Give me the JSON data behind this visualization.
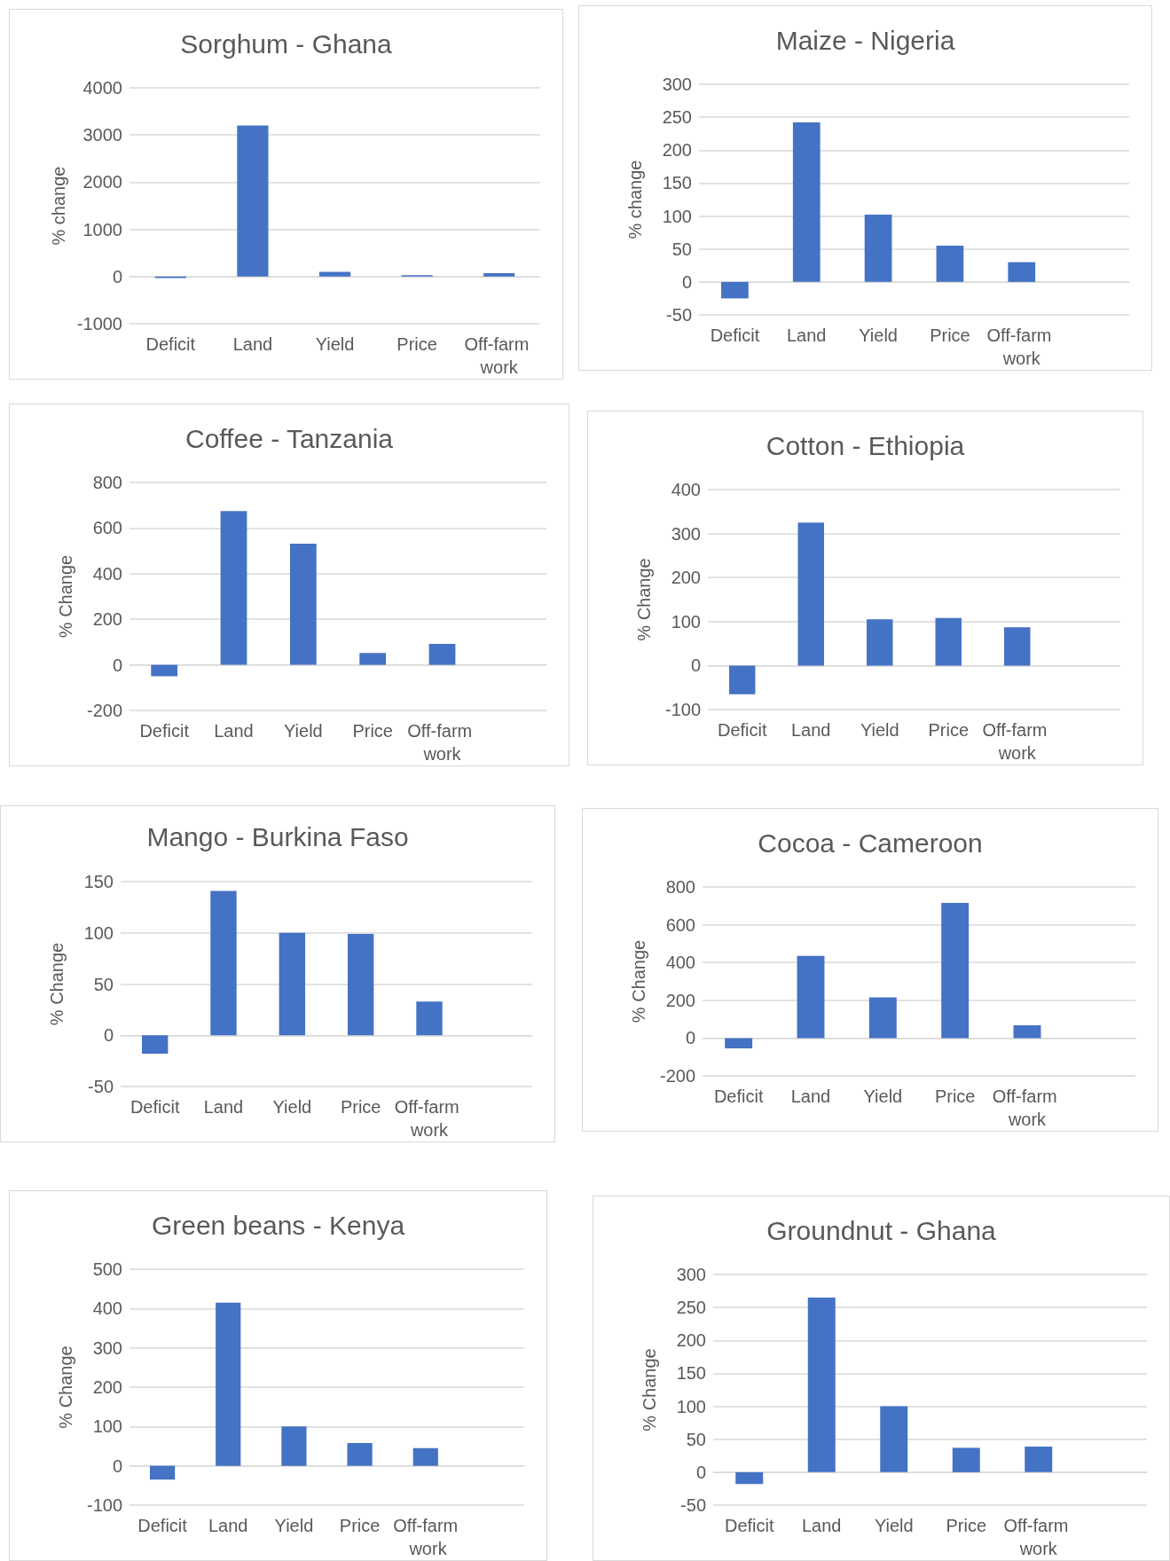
{
  "chart_data": [
    {
      "type": "bar",
      "title": "Sorghum - Ghana",
      "ylabel": "% change",
      "categories": [
        "Deficit",
        "Land",
        "Yield",
        "Price",
        "Off-farm work"
      ],
      "values": [
        -30,
        3200,
        100,
        30,
        70
      ],
      "color": "#4472c4",
      "ylim": [
        -1000,
        4000
      ],
      "yticks": [
        -1000,
        0,
        1000,
        2000,
        3000,
        4000
      ],
      "grid": "y"
    },
    {
      "type": "bar",
      "title": "Maize - Nigeria",
      "ylabel": "% change",
      "categories": [
        "Deficit",
        "Land",
        "Yield",
        "Price",
        "Off-farm work",
        null
      ],
      "values": [
        -25,
        242,
        102,
        55,
        30,
        null
      ],
      "color": "#4472c4",
      "ylim": [
        -50,
        300
      ],
      "yticks": [
        -50,
        0,
        50,
        100,
        150,
        200,
        250,
        300
      ],
      "grid": "y"
    },
    {
      "type": "bar",
      "title": "Coffee - Tanzania",
      "ylabel": "% Change",
      "categories": [
        "Deficit",
        "Land",
        "Yield",
        "Price",
        "Off-farm work",
        null
      ],
      "values": [
        -50,
        675,
        532,
        52,
        92,
        null
      ],
      "color": "#4472c4",
      "ylim": [
        -200,
        800
      ],
      "yticks": [
        -200,
        0,
        200,
        400,
        600,
        800
      ],
      "grid": "y"
    },
    {
      "type": "bar",
      "title": "Cotton - Ethiopia",
      "ylabel": "% Change",
      "categories": [
        "Deficit",
        "Land",
        "Yield",
        "Price",
        "Off-farm work",
        null
      ],
      "values": [
        -65,
        325,
        105,
        108,
        87,
        null
      ],
      "color": "#4472c4",
      "ylim": [
        -100,
        400
      ],
      "yticks": [
        -100,
        0,
        100,
        200,
        300,
        400
      ],
      "grid": "y"
    },
    {
      "type": "bar",
      "title": "Mango - Burkina Faso",
      "ylabel": "% Change",
      "categories": [
        "Deficit",
        "Land",
        "Yield",
        "Price",
        "Off-farm work",
        null
      ],
      "values": [
        -18,
        141,
        100,
        99,
        33,
        null
      ],
      "color": "#4472c4",
      "ylim": [
        -50,
        150
      ],
      "yticks": [
        -50,
        0,
        50,
        100,
        150
      ],
      "grid": "y"
    },
    {
      "type": "bar",
      "title": "Cocoa - Cameroon",
      "ylabel": "% Change",
      "categories": [
        "Deficit",
        "Land",
        "Yield",
        "Price",
        "Off-farm work",
        null
      ],
      "values": [
        -55,
        435,
        215,
        715,
        68,
        null
      ],
      "color": "#4472c4",
      "ylim": [
        -200,
        800
      ],
      "yticks": [
        -200,
        0,
        200,
        400,
        600,
        800
      ],
      "grid": "y"
    },
    {
      "type": "bar",
      "title": "Green beans - Kenya",
      "ylabel": "% Change",
      "categories": [
        "Deficit",
        "Land",
        "Yield",
        "Price",
        "Off-farm work",
        null
      ],
      "values": [
        -35,
        415,
        100,
        58,
        45,
        null
      ],
      "color": "#4472c4",
      "ylim": [
        -100,
        500
      ],
      "yticks": [
        -100,
        0,
        100,
        200,
        300,
        400,
        500
      ],
      "grid": "y"
    },
    {
      "type": "bar",
      "title": "Groundnut - Ghana",
      "ylabel": "% Change",
      "categories": [
        "Deficit",
        "Land",
        "Yield",
        "Price",
        "Off-farm work",
        null
      ],
      "values": [
        -18,
        265,
        100,
        37,
        39,
        null
      ],
      "color": "#4472c4",
      "ylim": [
        -50,
        300
      ],
      "yticks": [
        -50,
        0,
        50,
        100,
        150,
        200,
        250,
        300
      ],
      "grid": "y"
    }
  ]
}
